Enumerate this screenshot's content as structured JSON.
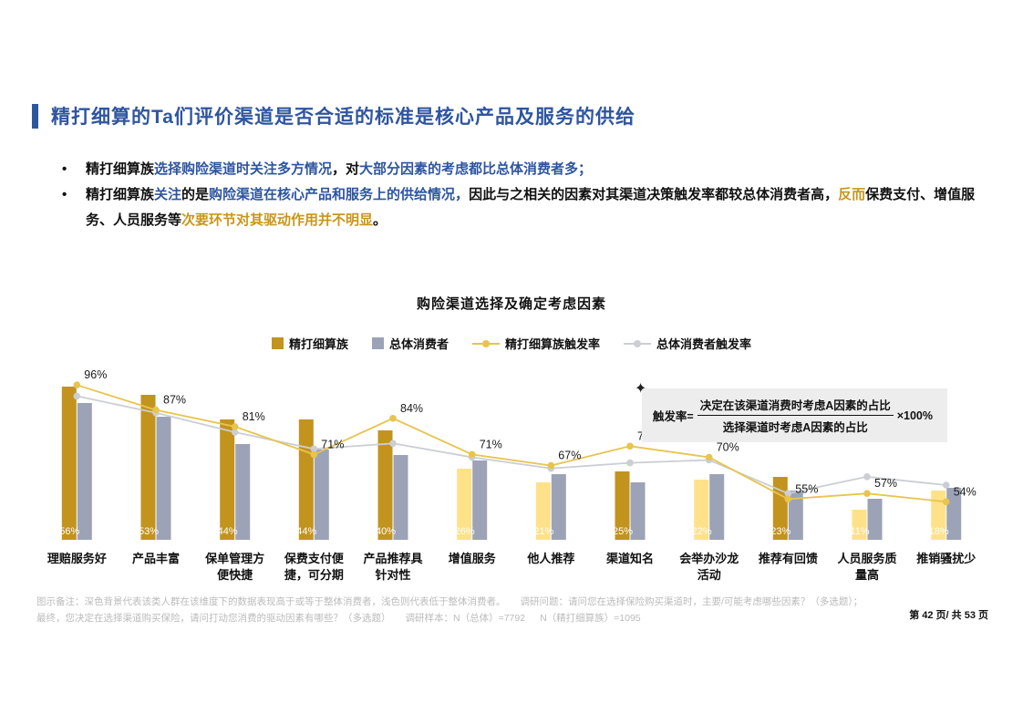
{
  "page": {
    "title": "精打细算的Ta们评价渠道是否合适的标准是核心产品及服务的供给",
    "page_number": "第 42 页/ 共 53 页"
  },
  "bullets": [
    {
      "segments": [
        {
          "text": "精打细算族",
          "color": "black"
        },
        {
          "text": "选择购险渠道时关注多方情况",
          "color": "blue"
        },
        {
          "text": "，对",
          "color": "black"
        },
        {
          "text": "大部分因素的考虑都比总体消费者多；",
          "color": "blue"
        }
      ]
    },
    {
      "segments": [
        {
          "text": "精打细算族",
          "color": "black"
        },
        {
          "text": "关注",
          "color": "blue"
        },
        {
          "text": "的是",
          "color": "black"
        },
        {
          "text": "购险渠道在核心产品和服务上的供给情况，",
          "color": "blue"
        },
        {
          "text": "因此与之相关的因素对其渠道决策触发率都较总体消费者高，",
          "color": "black"
        },
        {
          "text": "反而",
          "color": "gold"
        },
        {
          "text": "保费支付、增值服务、人员服务等",
          "color": "black"
        },
        {
          "text": "次要环节对其驱动作用并不明显",
          "color": "gold"
        },
        {
          "text": "。",
          "color": "black"
        }
      ]
    }
  ],
  "chart_data": {
    "type": "bar+line",
    "title": "购险渠道选择及确定考虑因素",
    "categories": [
      "理赔服务好",
      "产品丰富",
      "保单管理方便快捷",
      "保费支付便捷，可分期",
      "产品推荐具针对性",
      "增值服务",
      "他人推荐",
      "渠道知名",
      "会举办沙龙活动",
      "推荐有回馈",
      "人员服务质量高",
      "推销骚扰少"
    ],
    "series": [
      {
        "name": "精打细算族",
        "type": "bar",
        "values": [
          56,
          53,
          44,
          44,
          40,
          26,
          21,
          25,
          22,
          23,
          11,
          18
        ],
        "above_overall": [
          true,
          true,
          true,
          true,
          true,
          false,
          false,
          true,
          false,
          true,
          false,
          false
        ]
      },
      {
        "name": "总体消费者",
        "type": "bar",
        "values": [
          50,
          45,
          35,
          33,
          31,
          29,
          24,
          21,
          24,
          18,
          15,
          19
        ]
      },
      {
        "name": "精打细算族触发率",
        "type": "line",
        "values": [
          96,
          87,
          81,
          71,
          84,
          71,
          67,
          74,
          70,
          55,
          57,
          54
        ]
      },
      {
        "name": "总体消费者触发率",
        "type": "line",
        "values": [
          92,
          86,
          79,
          73,
          75,
          70,
          66,
          68,
          69,
          57,
          63,
          60
        ]
      }
    ],
    "legend_position": "top",
    "bar_axis_range": [
      0,
      60
    ],
    "line_axis_range": [
      40,
      100
    ],
    "grid": false
  },
  "formula": {
    "prefix": "触发率=",
    "numerator": "决定在该渠道消费时考虑A因素的占比",
    "denominator": "选择渠道时考虑A因素的占比",
    "suffix": "×100%"
  },
  "footnote": {
    "note": "图示备注：深色背景代表该类人群在该维度下的数据表现高于或等于整体消费者，浅色则代表低于整体消费者。",
    "question": "调研问题：请问您在选择保险购买渠道时，主要/可能考虑哪些因素？（多选题）；最终，您决定在选择渠道购买保险，请问打动您消费的驱动因素有哪些？（多选题）",
    "sample_total": "调研样本：N（总体）=7792",
    "sample_group": "N（精打细算族）=1095"
  },
  "colors": {
    "accent_blue": "#2E55A0",
    "text_gold": "#C9961B",
    "bar_dark_gold": "#C2931D",
    "bar_light_yellow": "#FFE18A",
    "bar_gray": "#9CA3B6",
    "line_gold": "#E8C44E",
    "line_gray": "#CBCED4",
    "formula_bg": "#EDEDED"
  }
}
